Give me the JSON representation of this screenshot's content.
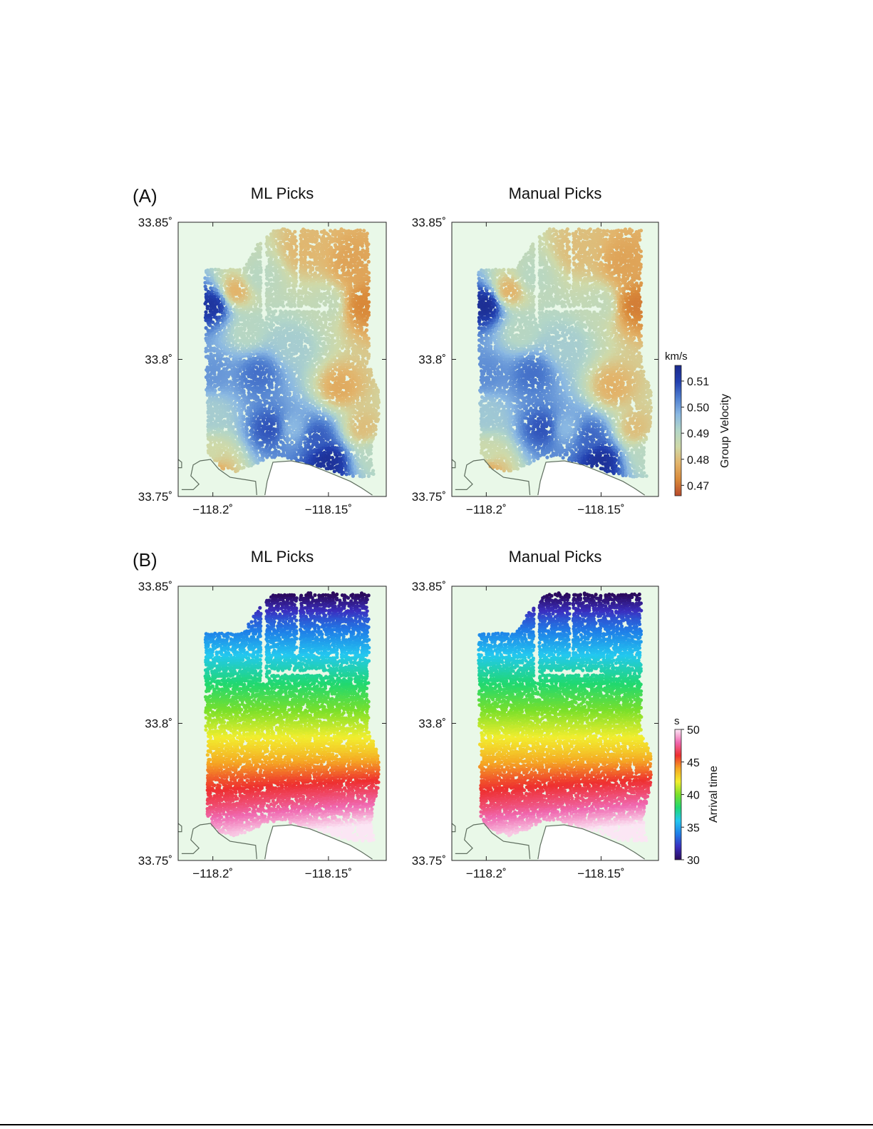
{
  "chart_data": [
    {
      "type": "scatter",
      "panel_label": "(A)",
      "title": "ML Picks",
      "quantity": "group velocity",
      "xlim": [
        -118.215,
        -118.125
      ],
      "ylim": [
        33.75,
        33.85
      ],
      "xticks": [
        -118.2,
        -118.15
      ],
      "xtick_labels": [
        "−118.2˚",
        "−118.15˚"
      ],
      "yticks": [
        33.75,
        33.8,
        33.85
      ],
      "ytick_labels": [
        "33.75˚",
        "33.8˚",
        "33.85˚"
      ],
      "colorscale": "velocity",
      "field_anchors": [
        {
          "x": -118.2,
          "y": 33.82,
          "v": 0.513
        },
        {
          "x": -118.2,
          "y": 33.795,
          "v": 0.501
        },
        {
          "x": -118.2,
          "y": 33.78,
          "v": 0.493
        },
        {
          "x": -118.2,
          "y": 33.765,
          "v": 0.485
        },
        {
          "x": -118.18,
          "y": 33.795,
          "v": 0.505
        },
        {
          "x": -118.175,
          "y": 33.775,
          "v": 0.508
        },
        {
          "x": -118.165,
          "y": 33.775,
          "v": 0.497
        },
        {
          "x": -118.155,
          "y": 33.772,
          "v": 0.507
        },
        {
          "x": -118.15,
          "y": 33.763,
          "v": 0.514
        },
        {
          "x": -118.165,
          "y": 33.805,
          "v": 0.493
        },
        {
          "x": -118.145,
          "y": 33.79,
          "v": 0.477
        },
        {
          "x": -118.135,
          "y": 33.775,
          "v": 0.48
        },
        {
          "x": -118.15,
          "y": 33.82,
          "v": 0.488
        },
        {
          "x": -118.135,
          "y": 33.82,
          "v": 0.472
        },
        {
          "x": -118.14,
          "y": 33.835,
          "v": 0.476
        },
        {
          "x": -118.16,
          "y": 33.84,
          "v": 0.479
        },
        {
          "x": -118.19,
          "y": 33.825,
          "v": 0.478
        },
        {
          "x": -118.185,
          "y": 33.81,
          "v": 0.49
        },
        {
          "x": -118.18,
          "y": 33.83,
          "v": 0.49
        },
        {
          "x": -118.13,
          "y": 33.765,
          "v": 0.49
        },
        {
          "x": -118.2,
          "y": 33.76,
          "v": 0.476
        }
      ]
    },
    {
      "type": "scatter",
      "title": "Manual Picks",
      "quantity": "group velocity",
      "xlim": [
        -118.215,
        -118.125
      ],
      "ylim": [
        33.75,
        33.85
      ],
      "xticks": [
        -118.2,
        -118.15
      ],
      "xtick_labels": [
        "−118.2˚",
        "−118.15˚"
      ],
      "yticks": [
        33.75,
        33.8,
        33.85
      ],
      "ytick_labels": [
        "33.75˚",
        "33.8˚",
        "33.85˚"
      ],
      "colorscale": "velocity",
      "field_anchors": [
        {
          "x": -118.2,
          "y": 33.82,
          "v": 0.515
        },
        {
          "x": -118.2,
          "y": 33.795,
          "v": 0.502
        },
        {
          "x": -118.2,
          "y": 33.78,
          "v": 0.494
        },
        {
          "x": -118.2,
          "y": 33.765,
          "v": 0.486
        },
        {
          "x": -118.18,
          "y": 33.795,
          "v": 0.505
        },
        {
          "x": -118.175,
          "y": 33.775,
          "v": 0.508
        },
        {
          "x": -118.165,
          "y": 33.775,
          "v": 0.497
        },
        {
          "x": -118.155,
          "y": 33.772,
          "v": 0.506
        },
        {
          "x": -118.15,
          "y": 33.763,
          "v": 0.514
        },
        {
          "x": -118.165,
          "y": 33.805,
          "v": 0.493
        },
        {
          "x": -118.145,
          "y": 33.79,
          "v": 0.478
        },
        {
          "x": -118.135,
          "y": 33.775,
          "v": 0.48
        },
        {
          "x": -118.15,
          "y": 33.82,
          "v": 0.488
        },
        {
          "x": -118.135,
          "y": 33.82,
          "v": 0.471
        },
        {
          "x": -118.14,
          "y": 33.835,
          "v": 0.476
        },
        {
          "x": -118.16,
          "y": 33.84,
          "v": 0.48
        },
        {
          "x": -118.19,
          "y": 33.825,
          "v": 0.478
        },
        {
          "x": -118.185,
          "y": 33.81,
          "v": 0.49
        },
        {
          "x": -118.18,
          "y": 33.83,
          "v": 0.49
        },
        {
          "x": -118.13,
          "y": 33.765,
          "v": 0.49
        },
        {
          "x": -118.2,
          "y": 33.76,
          "v": 0.476
        }
      ]
    },
    {
      "type": "scatter",
      "panel_label": "(B)",
      "title": "ML Picks",
      "quantity": "arrival time",
      "xlim": [
        -118.215,
        -118.125
      ],
      "ylim": [
        33.75,
        33.85
      ],
      "xticks": [
        -118.2,
        -118.15
      ],
      "xtick_labels": [
        "−118.2˚",
        "−118.15˚"
      ],
      "yticks": [
        33.75,
        33.8,
        33.85
      ],
      "ytick_labels": [
        "33.75˚",
        "33.8˚",
        "33.85˚"
      ],
      "colorscale": "arrival",
      "arrival_by_latitude": [
        {
          "y": 33.847,
          "t": 30
        },
        {
          "y": 33.838,
          "t": 33
        },
        {
          "y": 33.825,
          "t": 36
        },
        {
          "y": 33.812,
          "t": 38.5
        },
        {
          "y": 33.8,
          "t": 41
        },
        {
          "y": 33.79,
          "t": 43
        },
        {
          "y": 33.78,
          "t": 45.5
        },
        {
          "y": 33.77,
          "t": 47.5
        },
        {
          "y": 33.76,
          "t": 50
        }
      ]
    },
    {
      "type": "scatter",
      "title": "Manual Picks",
      "quantity": "arrival time",
      "xlim": [
        -118.215,
        -118.125
      ],
      "ylim": [
        33.75,
        33.85
      ],
      "xticks": [
        -118.2,
        -118.15
      ],
      "xtick_labels": [
        "−118.2˚",
        "−118.15˚"
      ],
      "yticks": [
        33.75,
        33.8,
        33.85
      ],
      "ytick_labels": [
        "33.75˚",
        "33.8˚",
        "33.85˚"
      ],
      "colorscale": "arrival",
      "arrival_by_latitude": [
        {
          "y": 33.847,
          "t": 30
        },
        {
          "y": 33.838,
          "t": 33
        },
        {
          "y": 33.825,
          "t": 36
        },
        {
          "y": 33.812,
          "t": 38.5
        },
        {
          "y": 33.8,
          "t": 41
        },
        {
          "y": 33.79,
          "t": 43
        },
        {
          "y": 33.78,
          "t": 45.5
        },
        {
          "y": 33.77,
          "t": 47.5
        },
        {
          "y": 33.76,
          "t": 50
        }
      ]
    }
  ],
  "colorbars": {
    "velocity": {
      "unit": "km/s",
      "label": "Group Velocity",
      "range": [
        0.466,
        0.516
      ],
      "ticks": [
        0.47,
        0.48,
        0.49,
        0.5,
        0.51
      ],
      "tick_labels": [
        "0.47",
        "0.48",
        "0.49",
        "0.50",
        "0.51"
      ],
      "stops": [
        "#b8492a",
        "#d98a3a",
        "#e2b46b",
        "#cfd9a8",
        "#b3d6c7",
        "#8ab8e2",
        "#4f7fd0",
        "#2240b0",
        "#1b2a8c"
      ]
    },
    "arrival": {
      "unit": "s",
      "label": "Arrival time",
      "range": [
        30,
        50
      ],
      "ticks": [
        30,
        35,
        40,
        45,
        50
      ],
      "tick_labels": [
        "30",
        "35",
        "40",
        "45",
        "50"
      ],
      "stops": [
        "#2b0a5c",
        "#3a2fc0",
        "#1f7fe8",
        "#23c8f0",
        "#20d870",
        "#7ae02a",
        "#f2ee2e",
        "#f5a623",
        "#ee2f2f",
        "#f068b0",
        "#fbe6f4"
      ]
    }
  },
  "colors": {
    "land_fill": "#e9f8e8",
    "coastline": "#5e6d5e",
    "missing_data": "#ffffff"
  }
}
